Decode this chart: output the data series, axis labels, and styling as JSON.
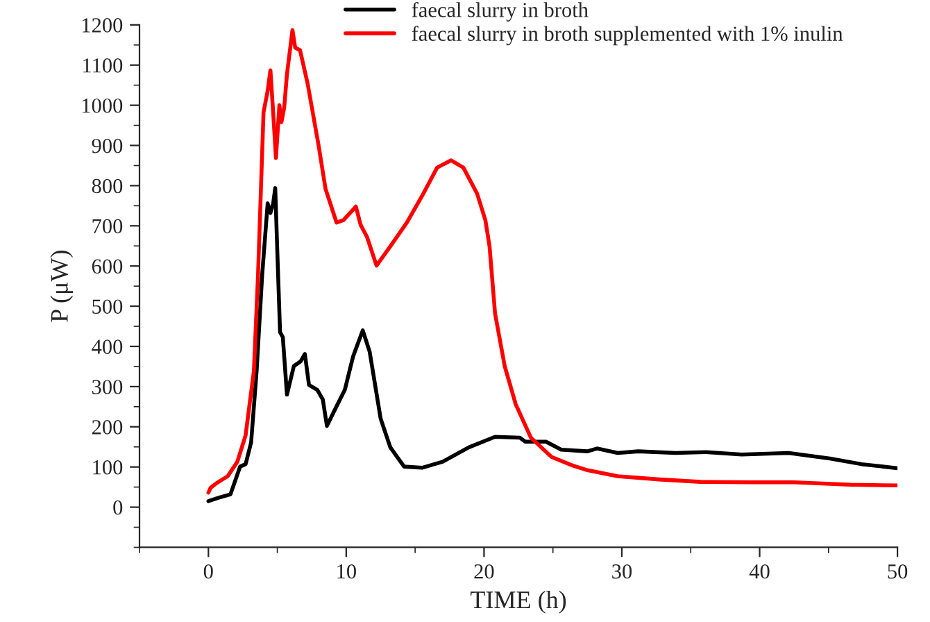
{
  "chart_data": {
    "type": "line",
    "xlabel": "TIME (h)",
    "ylabel": "P (μW)",
    "xlim": [
      -5,
      50
    ],
    "ylim": [
      -100,
      1200
    ],
    "xticks": [
      0,
      10,
      20,
      30,
      40,
      50
    ],
    "yticks": [
      0,
      100,
      200,
      300,
      400,
      500,
      600,
      700,
      800,
      900,
      1000,
      1100,
      1200
    ],
    "grid": false,
    "legend": "top",
    "marker": "none",
    "line_style": "solid",
    "series": [
      {
        "name": "faecal slurry in broth",
        "color": "#000000",
        "x": [
          0,
          0.8,
          1.6,
          2.3,
          2.7,
          3.1,
          3.5,
          3.9,
          4.3,
          4.5,
          4.7,
          4.85,
          5.0,
          5.2,
          5.4,
          5.7,
          6.2,
          6.7,
          7.0,
          7.3,
          7.9,
          8.3,
          8.6,
          9.2,
          9.9,
          10.5,
          11.2,
          11.7,
          12.5,
          13.2,
          14.2,
          15.5,
          17,
          18.9,
          20.8,
          22.6,
          23,
          24.5,
          25.6,
          27.5,
          28.2,
          29.7,
          31.2,
          33.9,
          36.1,
          38.7,
          42.1,
          45.1,
          47.4,
          50
        ],
        "values": [
          15,
          24,
          32,
          101,
          107,
          161,
          339,
          577,
          756,
          732,
          756,
          794,
          637,
          435,
          423,
          280,
          351,
          363,
          381,
          304,
          292,
          268,
          202,
          244,
          292,
          375,
          440,
          387,
          220,
          149,
          101,
          98,
          113,
          149,
          175,
          173,
          163,
          163,
          143,
          139,
          146,
          135,
          139,
          135,
          137,
          131,
          135,
          121,
          107,
          97
        ]
      },
      {
        "name": "faecal slurry in broth supplemented with 1% inulin",
        "color": "#ff0000",
        "x": [
          0,
          0.15,
          0.6,
          1.4,
          2.1,
          2.7,
          3.3,
          3.6,
          4.0,
          4.3,
          4.5,
          4.7,
          4.9,
          5.15,
          5.3,
          5.5,
          5.7,
          6.1,
          6.3,
          6.65,
          7.2,
          8.0,
          8.5,
          9.3,
          9.8,
          10.7,
          11.05,
          11.5,
          12.2,
          13.2,
          14.4,
          15.5,
          16.6,
          17.6,
          18.5,
          19.5,
          20.1,
          20.4,
          20.8,
          21.5,
          22.3,
          23.4,
          24.9,
          26.4,
          27.5,
          29.7,
          32.7,
          35.7,
          39.5,
          42.5,
          46.6,
          50
        ],
        "values": [
          36,
          48,
          60,
          77,
          113,
          179,
          339,
          577,
          982,
          1036,
          1087,
          982,
          869,
          1000,
          958,
          994,
          1077,
          1187,
          1143,
          1137,
          1054,
          899,
          792,
          708,
          714,
          748,
          702,
          673,
          601,
          649,
          708,
          774,
          845,
          863,
          845,
          780,
          714,
          649,
          482,
          351,
          256,
          173,
          125,
          104,
          92,
          77,
          69,
          63,
          62,
          62,
          56,
          54
        ]
      }
    ]
  }
}
